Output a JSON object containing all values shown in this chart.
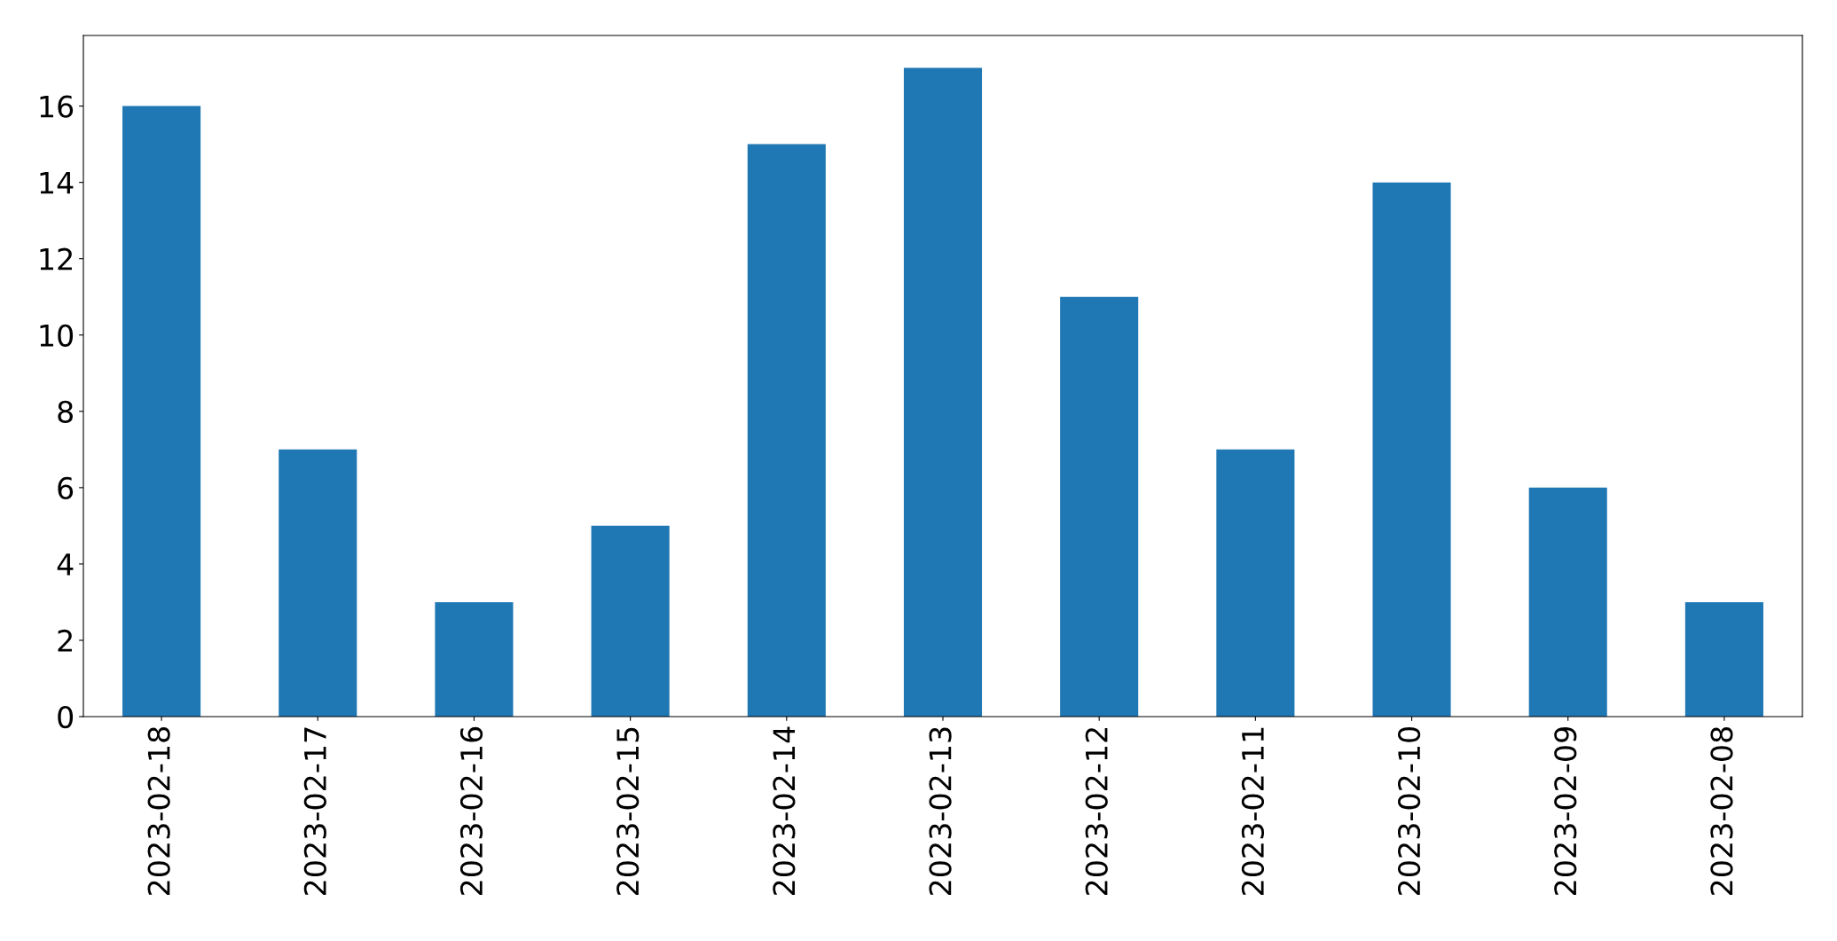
{
  "chart_data": {
    "type": "bar",
    "categories": [
      "2023-02-18",
      "2023-02-17",
      "2023-02-16",
      "2023-02-15",
      "2023-02-14",
      "2023-02-13",
      "2023-02-12",
      "2023-02-11",
      "2023-02-10",
      "2023-02-09",
      "2023-02-08"
    ],
    "values": [
      16,
      7,
      3,
      5,
      15,
      17,
      11,
      7,
      14,
      6,
      3
    ],
    "color": "#1f77b4",
    "ylim": [
      0,
      17.85
    ],
    "yticks": [
      0,
      2,
      4,
      6,
      8,
      10,
      12,
      14,
      16
    ],
    "grid": false
  }
}
